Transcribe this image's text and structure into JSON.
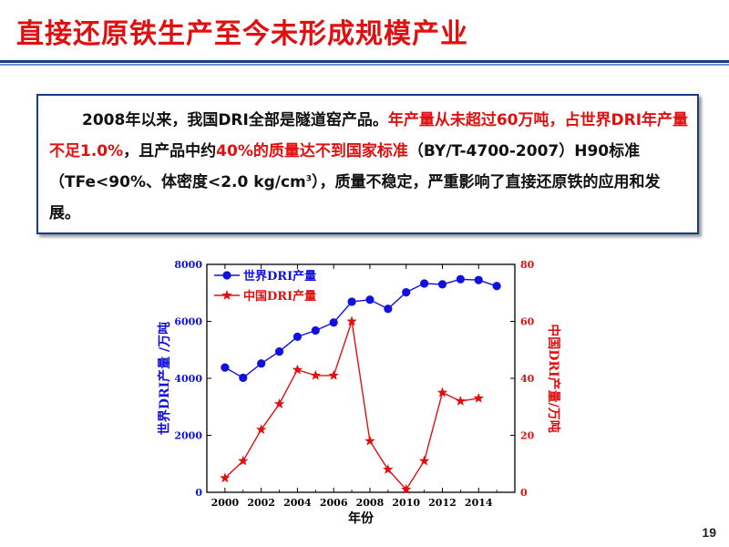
{
  "slide": {
    "title": "直接还原铁生产至今未形成规模产业",
    "page_number": "19"
  },
  "textbox": {
    "p1": "2008年以来，我国DRI全部是隧道窑产品。",
    "p2_red": "年产量从未超过60万吨，占世界DRI年产量不足1.0%",
    "p3": "，且产品中约",
    "p4_red": "40%的质量达不到国家标准",
    "p5": "（BY/T-4700-2007）H90标准（TFe<90%、体密度<2.0 kg/cm",
    "p5_sup": "3",
    "p6": "），质量不稳定，严重影响了直接还原铁的应用和发展。"
  },
  "colors": {
    "title": "#e01010",
    "world_series": "#1010e0",
    "china_series": "#e01010",
    "axis_left": "#1010e0",
    "axis_right": "#e01010"
  },
  "chart_data": {
    "type": "line",
    "xlabel": "年份",
    "ylabel_left": "世界DRI产量 /万吨",
    "ylabel_right": "中国DRI产量/万吨",
    "xlim": [
      1999,
      2016
    ],
    "ylim_left": [
      0,
      8000
    ],
    "ylim_right": [
      0,
      80
    ],
    "x_ticks": [
      2000,
      2002,
      2004,
      2006,
      2008,
      2010,
      2012,
      2014
    ],
    "y_left_ticks": [
      0,
      2000,
      4000,
      6000,
      8000
    ],
    "y_right_ticks": [
      0,
      20,
      40,
      60,
      80
    ],
    "legend_position": "top-left",
    "grid": false,
    "series": [
      {
        "name": "世界DRI产量",
        "axis": "left",
        "marker": "circle",
        "x": [
          2000,
          2001,
          2002,
          2003,
          2004,
          2005,
          2006,
          2007,
          2008,
          2009,
          2010,
          2011,
          2012,
          2013,
          2014,
          2015
        ],
        "values": [
          4380,
          4020,
          4520,
          4940,
          5460,
          5680,
          5960,
          6690,
          6760,
          6440,
          7020,
          7330,
          7300,
          7480,
          7450,
          7240
        ]
      },
      {
        "name": "中国DRI产量",
        "axis": "right",
        "marker": "star",
        "x": [
          2000,
          2001,
          2002,
          2003,
          2004,
          2005,
          2006,
          2007,
          2008,
          2009,
          2010,
          2011,
          2012,
          2013,
          2014
        ],
        "values": [
          5,
          11,
          22,
          31,
          43,
          41,
          41,
          60,
          18,
          8,
          1,
          11,
          35,
          32,
          33
        ]
      }
    ]
  }
}
